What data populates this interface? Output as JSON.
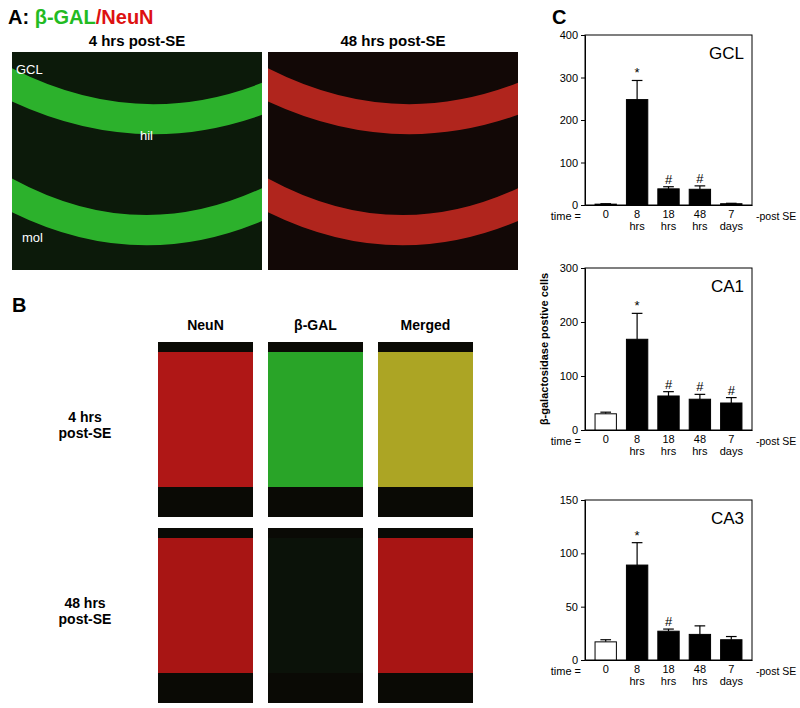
{
  "figure": {
    "panel_a": {
      "label": "A:",
      "stain_1": "β-GAL",
      "stain_2": "/NeuN",
      "images": [
        "4 hrs post-SE",
        "48 hrs post-SE"
      ],
      "regions": [
        "GCL",
        "hil",
        "mol"
      ]
    },
    "panel_b": {
      "label": "B",
      "columns": [
        "NeuN",
        "β-GAL",
        "Merged"
      ],
      "rows": [
        "4 hrs post-SE",
        "48 hrs post-SE"
      ]
    },
    "panel_c": {
      "label": "C"
    }
  },
  "chart_data": [
    {
      "type": "bar",
      "title": "GCL",
      "xlabel_prefix": "time =",
      "xlabel_suffix": "-post SE",
      "categories": [
        "0",
        "8 hrs",
        "18 hrs",
        "48 hrs",
        "7 days"
      ],
      "values": [
        2,
        248,
        38,
        37,
        3
      ],
      "errors": [
        1,
        45,
        5,
        8,
        1
      ],
      "annotations": [
        null,
        "*",
        "#",
        "#",
        null
      ],
      "colors": [
        "#ffffff",
        "#000000",
        "#000000",
        "#000000",
        "#000000"
      ],
      "ylim": [
        0,
        400
      ],
      "yticks": [
        0,
        100,
        200,
        300,
        400
      ],
      "grid": false
    },
    {
      "type": "bar",
      "title": "CA1",
      "xlabel_prefix": "time =",
      "xlabel_suffix": "-post SE",
      "ylabel": "β-galactosidase postive cells",
      "categories": [
        "0",
        "8 hrs",
        "18 hrs",
        "48 hrs",
        "7 days"
      ],
      "values": [
        30,
        168,
        63,
        57,
        50
      ],
      "errors": [
        3,
        48,
        8,
        9,
        10
      ],
      "annotations": [
        null,
        "*",
        "#",
        "#",
        "#"
      ],
      "colors": [
        "#ffffff",
        "#000000",
        "#000000",
        "#000000",
        "#000000"
      ],
      "ylim": [
        0,
        300
      ],
      "yticks": [
        0,
        100,
        200,
        300
      ],
      "grid": false
    },
    {
      "type": "bar",
      "title": "CA3",
      "xlabel_prefix": "time =",
      "xlabel_suffix": "-post SE",
      "categories": [
        "0",
        "8 hrs",
        "18 hrs",
        "48 hrs",
        "7 days"
      ],
      "values": [
        17,
        89,
        27,
        24,
        19
      ],
      "errors": [
        2,
        21,
        2,
        8,
        3
      ],
      "annotations": [
        null,
        "*",
        "#",
        null,
        null
      ],
      "colors": [
        "#ffffff",
        "#000000",
        "#000000",
        "#000000",
        "#000000"
      ],
      "ylim": [
        0,
        150
      ],
      "yticks": [
        0,
        50,
        100,
        150
      ],
      "grid": false
    }
  ]
}
